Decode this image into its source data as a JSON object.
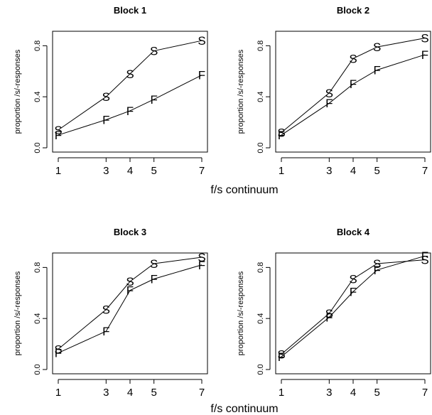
{
  "chart_data": [
    {
      "type": "line",
      "title": "Block 1",
      "xlabel": "f/s continuum",
      "ylabel": "proportion /s/-responses",
      "x": [
        1,
        3,
        4,
        5,
        7
      ],
      "xticks": [
        "1",
        "3",
        "4",
        "5",
        "7"
      ],
      "yticks": [
        "0.0",
        "0.4",
        "0.8"
      ],
      "ylim": [
        0,
        0.88
      ],
      "grid": false,
      "series": [
        {
          "name": "S",
          "values": [
            0.14,
            0.4,
            0.58,
            0.76,
            0.84
          ]
        },
        {
          "name": "F",
          "values": [
            0.1,
            0.22,
            0.29,
            0.38,
            0.57
          ]
        }
      ]
    },
    {
      "type": "line",
      "title": "Block 2",
      "xlabel": "f/s continuum",
      "ylabel": "proportion /s/-responses",
      "x": [
        1,
        3,
        4,
        5,
        7
      ],
      "xticks": [
        "1",
        "3",
        "4",
        "5",
        "7"
      ],
      "yticks": [
        "0.0",
        "0.4",
        "0.8"
      ],
      "ylim": [
        0,
        0.88
      ],
      "grid": false,
      "series": [
        {
          "name": "S",
          "values": [
            0.12,
            0.43,
            0.7,
            0.79,
            0.86
          ]
        },
        {
          "name": "F",
          "values": [
            0.1,
            0.35,
            0.5,
            0.61,
            0.73
          ]
        }
      ]
    },
    {
      "type": "line",
      "title": "Block 3",
      "xlabel": "f/s continuum",
      "ylabel": "proportion /s/-responses",
      "x": [
        1,
        3,
        4,
        5,
        7
      ],
      "xticks": [
        "1",
        "3",
        "4",
        "5",
        "7"
      ],
      "yticks": [
        "0.0",
        "0.4",
        "0.8"
      ],
      "ylim": [
        0,
        0.88
      ],
      "grid": false,
      "series": [
        {
          "name": "S",
          "values": [
            0.16,
            0.47,
            0.69,
            0.83,
            0.88
          ]
        },
        {
          "name": "F",
          "values": [
            0.13,
            0.3,
            0.62,
            0.71,
            0.82
          ]
        }
      ]
    },
    {
      "type": "line",
      "title": "Block 4",
      "xlabel": "f/s continuum",
      "ylabel": "proportion /s/-responses",
      "x": [
        1,
        3,
        4,
        5,
        7
      ],
      "xticks": [
        "1",
        "3",
        "4",
        "5",
        "7"
      ],
      "yticks": [
        "0.0",
        "0.4",
        "0.8"
      ],
      "ylim": [
        0,
        0.88
      ],
      "grid": false,
      "series": [
        {
          "name": "S",
          "values": [
            0.12,
            0.44,
            0.71,
            0.83,
            0.86
          ]
        },
        {
          "name": "F",
          "values": [
            0.1,
            0.41,
            0.61,
            0.78,
            0.89
          ]
        }
      ]
    }
  ],
  "shared_xlabels": [
    "f/s continuum",
    "f/s continuum"
  ]
}
